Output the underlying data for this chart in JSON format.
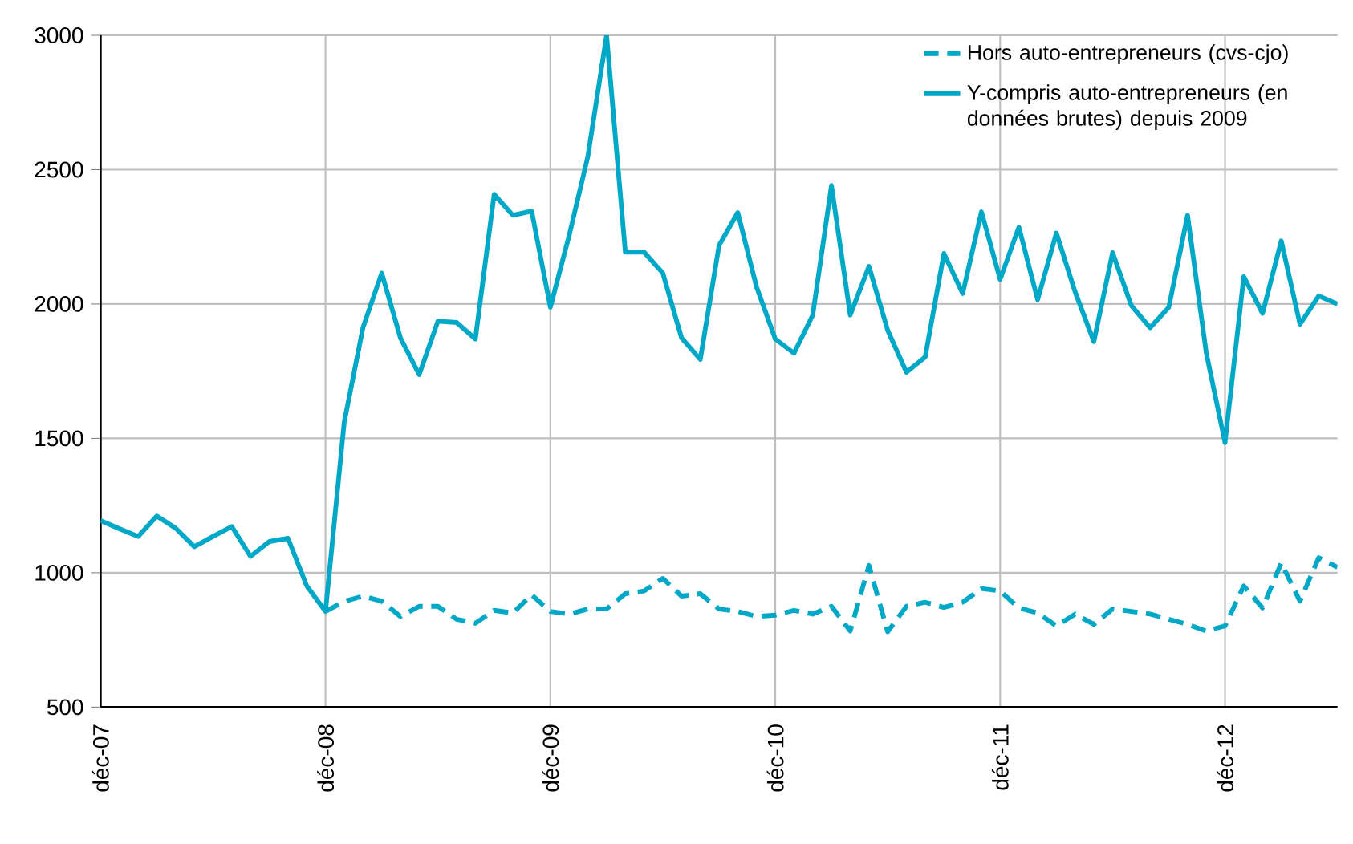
{
  "chart_data": {
    "type": "line",
    "xlim": [
      "2007-12",
      "2013-06"
    ],
    "xticks": [
      {
        "value": "2007-12",
        "label": "déc-07"
      },
      {
        "value": "2008-12",
        "label": "déc-08"
      },
      {
        "value": "2009-12",
        "label": "déc-09"
      },
      {
        "value": "2010-12",
        "label": "déc-10"
      },
      {
        "value": "2011-12",
        "label": "déc-11"
      },
      {
        "value": "2012-12",
        "label": "déc-12"
      }
    ],
    "ylim": [
      500,
      3000
    ],
    "yticks": [
      500,
      1000,
      1500,
      2000,
      2500,
      3000
    ],
    "grid": true,
    "legend": "top right",
    "series": [
      {
        "name": "Hors auto-entrepreneurs (cvs-cjo)",
        "color": "#00a8c8",
        "line_style": "dashed",
        "x": [
          "2008-12",
          "2009-01",
          "2009-02",
          "2009-03",
          "2009-04",
          "2009-05",
          "2009-06",
          "2009-07",
          "2009-08",
          "2009-09",
          "2009-10",
          "2009-11",
          "2009-12",
          "2010-01",
          "2010-02",
          "2010-03",
          "2010-04",
          "2010-05",
          "2010-06",
          "2010-07",
          "2010-08",
          "2010-09",
          "2010-10",
          "2010-11",
          "2010-12",
          "2011-01",
          "2011-02",
          "2011-03",
          "2011-04",
          "2011-05",
          "2011-06",
          "2011-07",
          "2011-08",
          "2011-09",
          "2011-10",
          "2011-11",
          "2011-12",
          "2012-01",
          "2012-02",
          "2012-03",
          "2012-04",
          "2012-05",
          "2012-06",
          "2012-07",
          "2012-08",
          "2012-09",
          "2012-10",
          "2012-11",
          "2012-12",
          "2013-01",
          "2013-02",
          "2013-03",
          "2013-04",
          "2013-05",
          "2013-06"
        ],
        "values": [
          856,
          893,
          913,
          894,
          837,
          875,
          875,
          827,
          812,
          860,
          850,
          918,
          856,
          846,
          865,
          865,
          922,
          932,
          979,
          913,
          922,
          865,
          856,
          837,
          842,
          860,
          846,
          875,
          783,
          1027,
          780,
          875,
          890,
          871,
          890,
          941,
          932,
          869,
          850,
          802,
          846,
          808,
          865,
          856,
          846,
          827,
          808,
          783,
          802,
          951,
          869,
          1036,
          894,
          1056,
          1020
        ]
      },
      {
        "name": "Y-compris auto-entrepreneurs (en données brutes) depuis 2009",
        "color": "#00a8c8",
        "line_style": "solid",
        "x": [
          "2007-12",
          "2008-01",
          "2008-02",
          "2008-03",
          "2008-04",
          "2008-05",
          "2008-06",
          "2008-07",
          "2008-08",
          "2008-09",
          "2008-10",
          "2008-11",
          "2008-12",
          "2009-01",
          "2009-02",
          "2009-03",
          "2009-04",
          "2009-05",
          "2009-06",
          "2009-07",
          "2009-08",
          "2009-09",
          "2009-10",
          "2009-11",
          "2009-12",
          "2010-01",
          "2010-02",
          "2010-03",
          "2010-04",
          "2010-05",
          "2010-06",
          "2010-07",
          "2010-08",
          "2010-09",
          "2010-10",
          "2010-11",
          "2010-12",
          "2011-01",
          "2011-02",
          "2011-03",
          "2011-04",
          "2011-05",
          "2011-06",
          "2011-07",
          "2011-08",
          "2011-09",
          "2011-10",
          "2011-11",
          "2011-12",
          "2012-01",
          "2012-02",
          "2012-03",
          "2012-04",
          "2012-05",
          "2012-06",
          "2012-07",
          "2012-08",
          "2012-09",
          "2012-10",
          "2012-11",
          "2012-12",
          "2013-01",
          "2013-02",
          "2013-03",
          "2013-04",
          "2013-05",
          "2013-06"
        ],
        "values": [
          1194,
          1164,
          1135,
          1211,
          1166,
          1097,
          1135,
          1172,
          1061,
          1116,
          1128,
          951,
          856,
          1560,
          1912,
          2115,
          1874,
          1737,
          1936,
          1931,
          1870,
          2408,
          2330,
          2346,
          1988,
          2254,
          2549,
          3000,
          2193,
          2193,
          2115,
          1874,
          1794,
          2218,
          2340,
          2064,
          1870,
          1817,
          1959,
          2441,
          1959,
          2140,
          1902,
          1746,
          1803,
          2188,
          2039,
          2343,
          2092,
          2286,
          2016,
          2264,
          2045,
          1860,
          2191,
          1994,
          1912,
          1988,
          2330,
          1817,
          1484,
          2102,
          1965,
          2235,
          1925,
          2030,
          2000
        ]
      }
    ]
  }
}
